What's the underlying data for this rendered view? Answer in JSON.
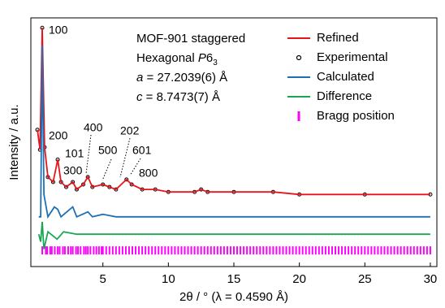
{
  "chart_data": {
    "type": "line",
    "xlabel": "2θ / ° (λ = 0.4590 Å)",
    "ylabel": "Intensity / a.u.",
    "xlim": [
      -0.5,
      30.5
    ],
    "xticks": [
      5,
      10,
      15,
      20,
      25,
      30
    ],
    "ylim": [
      0,
      100
    ],
    "legend": "upper right",
    "info": [
      {
        "text": "MOF-901 staggered"
      },
      {
        "text": "Hexagonal ",
        "italic": "P",
        "rest": "6",
        "sub": "3"
      },
      {
        "italic": "a",
        "text": " = 27.2039(6) Å"
      },
      {
        "italic": "c",
        "text": " = 8.7473(7) Å"
      }
    ],
    "annotations": [
      "100",
      "200",
      "101",
      "300",
      "400",
      "500",
      "202",
      "601",
      "800"
    ],
    "series": [
      {
        "name": "Experimental",
        "color": "#000000",
        "marker": "circle",
        "x": [
          0,
          0.2,
          0.37,
          0.55,
          0.8,
          1.2,
          1.55,
          1.8,
          2.2,
          2.7,
          3,
          3.5,
          3.85,
          4.2,
          5,
          5.5,
          6,
          6.8,
          7.2,
          8,
          9,
          10,
          12,
          12.5,
          13,
          15,
          18,
          20,
          25,
          30
        ],
        "values": [
          55,
          47,
          96,
          48,
          36,
          34,
          43,
          34,
          32,
          34,
          31,
          33,
          36,
          32,
          33,
          32,
          31,
          35,
          33,
          31,
          31,
          30,
          30,
          31,
          30,
          30,
          30,
          29,
          29,
          29
        ]
      },
      {
        "name": "Refined",
        "color": "#e8141c",
        "x": [
          0,
          0.2,
          0.37,
          0.55,
          0.8,
          1.2,
          1.55,
          1.8,
          2.2,
          2.7,
          3,
          3.5,
          3.85,
          4.2,
          5,
          5.5,
          6,
          6.8,
          7.2,
          8,
          9,
          10,
          12,
          12.5,
          13,
          15,
          18,
          20,
          25,
          30
        ],
        "values": [
          55,
          47,
          96,
          48,
          36,
          34,
          43,
          34,
          32,
          34,
          31,
          33,
          36,
          32,
          33,
          32,
          31,
          35,
          33,
          31,
          31,
          30,
          30,
          31,
          30,
          30,
          30,
          29,
          29,
          29
        ]
      },
      {
        "name": "Calculated",
        "color": "#1f6fb5",
        "x": [
          0.1,
          0.25,
          0.37,
          0.5,
          0.8,
          1.3,
          1.55,
          1.8,
          2.7,
          3,
          3.85,
          4.2,
          5,
          6,
          8,
          10,
          30
        ],
        "values": [
          20,
          20,
          89,
          29,
          20,
          24,
          23,
          20,
          24,
          20,
          22,
          20,
          21,
          20,
          20,
          20,
          20
        ]
      },
      {
        "name": "Difference",
        "color": "#1aa655",
        "x": [
          0.1,
          0.25,
          0.37,
          0.5,
          0.8,
          1.5,
          2,
          3,
          5,
          30
        ],
        "values": [
          13,
          10,
          18,
          7,
          14,
          11,
          14,
          13,
          13,
          13
        ]
      }
    ],
    "bragg": {
      "name": "Bragg position",
      "color": "#ff00ff",
      "value": 6.5,
      "x": [
        0.37,
        0.64,
        0.74,
        0.98,
        1.1,
        1.33,
        1.55,
        1.7,
        1.95,
        2.1,
        2.35,
        2.55,
        2.7,
        2.95,
        3.1,
        3.3,
        3.55,
        3.7,
        3.85,
        4.05,
        4.3,
        4.5,
        4.7,
        4.9,
        5,
        5.25,
        5.5,
        5.75,
        6,
        6.25,
        6.5,
        6.75,
        7,
        7.25,
        7.5,
        7.75,
        8,
        8.25,
        8.5,
        8.75,
        9,
        9.25,
        9.5,
        9.75,
        10,
        10.25,
        10.5,
        10.75,
        11,
        11.25,
        11.5,
        11.75,
        12,
        12.25,
        12.5,
        12.75,
        13,
        13.25,
        13.5,
        13.75,
        14,
        14.25,
        14.5,
        14.75,
        15,
        15.25,
        15.5,
        15.75,
        16,
        16.25,
        16.5,
        16.75,
        17,
        17.25,
        17.5,
        17.75,
        18,
        18.25,
        18.5,
        18.75,
        19,
        19.25,
        19.5,
        19.75,
        20,
        20.25,
        20.5,
        20.75,
        21,
        21.25,
        21.5,
        21.75,
        22,
        22.25,
        22.5,
        22.75,
        23,
        23.25,
        23.5,
        23.75,
        24,
        24.25,
        24.5,
        24.75,
        25,
        25.25,
        25.5,
        25.75,
        26,
        26.25,
        26.5,
        26.75,
        27,
        27.25,
        27.5,
        27.75,
        28,
        28.25,
        28.5,
        28.75,
        29,
        29.25,
        29.5,
        29.75,
        30
      ]
    }
  }
}
